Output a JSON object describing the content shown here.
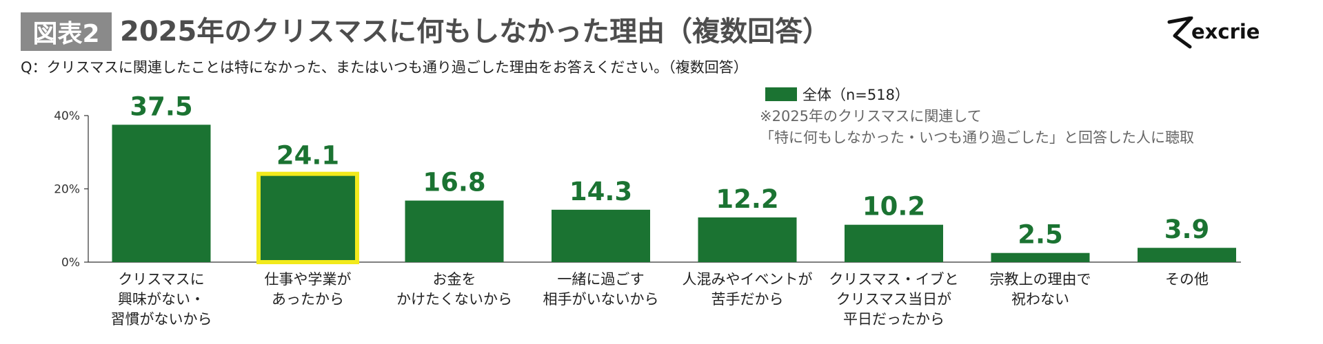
{
  "header": {
    "badge": "図表2",
    "title": "2025年のクリスマスに何もしなかった理由（複数回答）",
    "logo_text": "excrie"
  },
  "question": "Q：クリスマスに関連したことは特になかった、またはいつも通り過ごした理由をお答えください。（複数回答）",
  "note_lines": [
    "※2025年のクリスマスに関連して",
    "「特に何もしなかった・いつも通り過ごした」と回答した人に聴取"
  ],
  "colors": {
    "bar": "#1b7332",
    "highlight": "#f2ea1c",
    "axis": "#333333"
  },
  "chart_data": {
    "type": "bar",
    "categories": [
      [
        "クリスマスに",
        "興味がない・",
        "習慣がないから"
      ],
      [
        "仕事や学業が",
        "あったから"
      ],
      [
        "お金を",
        "かけたくないから"
      ],
      [
        "一緒に過ごす",
        "相手がいないから"
      ],
      [
        "人混みやイベントが",
        "苦手だから"
      ],
      [
        "クリスマス・イブと",
        "クリスマス当日が",
        "平日だったから"
      ],
      [
        "宗教上の理由で",
        "祝わない"
      ],
      [
        "その他"
      ]
    ],
    "series": [
      {
        "name": "全体（n=518）",
        "values": [
          37.5,
          24.1,
          16.8,
          14.3,
          12.2,
          10.2,
          2.5,
          3.9
        ]
      }
    ],
    "value_labels": [
      "37.5",
      "24.1",
      "16.8",
      "14.3",
      "12.2",
      "10.2",
      "2.5",
      "3.9"
    ],
    "highlighted_index": 1,
    "ylim": [
      0,
      40
    ],
    "yticks": [
      0,
      20,
      40
    ],
    "ytick_labels": [
      "0%",
      "20%",
      "40%"
    ],
    "legend": "top-right",
    "grid": false
  }
}
